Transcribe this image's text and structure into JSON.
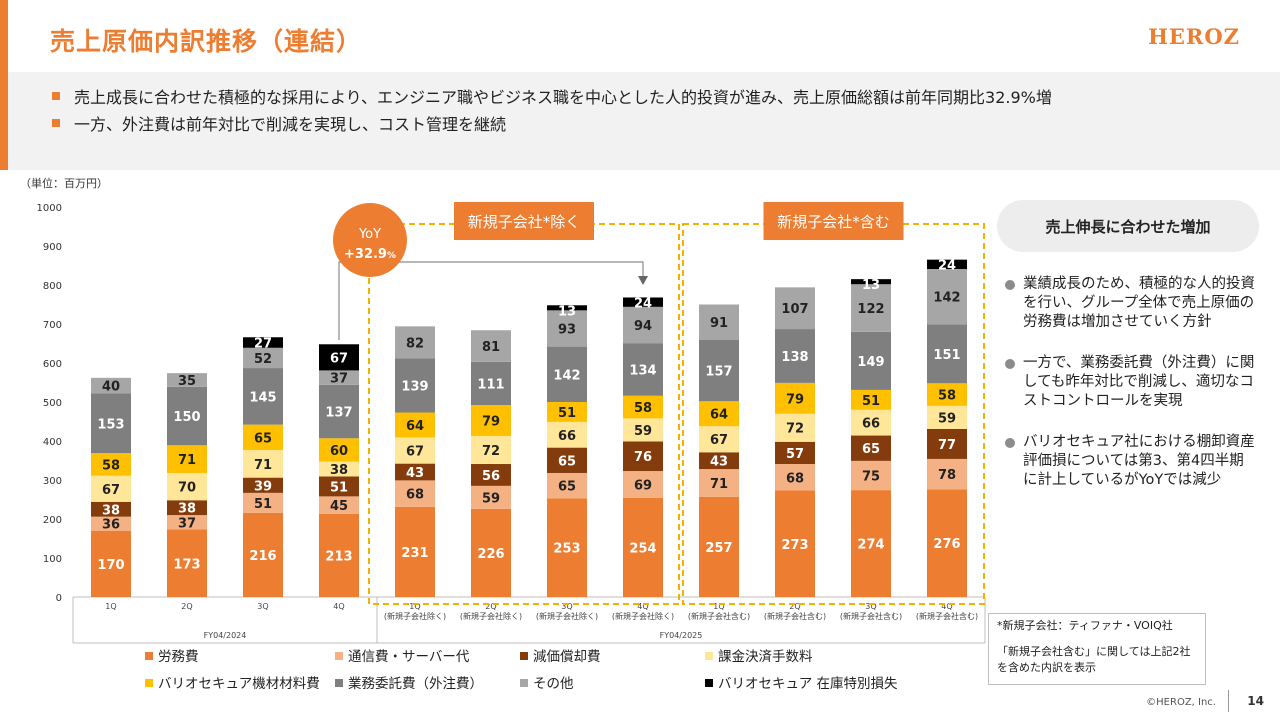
{
  "header": {
    "title": "売上原価内訳推移（連結）",
    "logo": "HEROZ"
  },
  "summary": {
    "bullets": [
      "売上成長に合わせた積極的な採用により、エンジニア職やビジネス職を中心とした人的投資が進み、売上原価総額は前年同期比32.9%増",
      "一方、外注費は前年対比で削減を実現し、コスト管理を継続"
    ]
  },
  "sidebar": {
    "callout": "売上伸長に合わせた増加",
    "points": [
      "業績成長のため、積極的な人的投資を行い、グループ全体で売上原価の労務費は増加させていく方針",
      "一方で、業務委託費（外注費）に関しても昨年対比で削減し、適切なコストコントロールを実現",
      "バリオセキュア社における棚卸資産評価損については第3、第4四半期に計上しているがYoYでは減少"
    ],
    "note_line1": "*新規子会社：ティファナ・VOIQ社",
    "note_line2": "「新規子会社含む」に関しては上記2社を含めた内訳を表示"
  },
  "footer": {
    "copyright": "©HEROZ, Inc.",
    "page": "14"
  },
  "chart_data": {
    "type": "bar",
    "stacked": true,
    "unit_label": "（単位：百万円）",
    "ylim": [
      0,
      1000
    ],
    "yticks": [
      0,
      100,
      200,
      300,
      400,
      500,
      600,
      700,
      800,
      900,
      1000
    ],
    "categories": [
      [
        "1Q"
      ],
      [
        "2Q"
      ],
      [
        "3Q"
      ],
      [
        "4Q"
      ],
      [
        "1Q",
        "(新規子会社除く)"
      ],
      [
        "2Q",
        "(新規子会社除く)"
      ],
      [
        "3Q",
        "(新規子会社除く)"
      ],
      [
        "4Q",
        "(新規子会社除く)"
      ],
      [
        "1Q",
        "(新規子会社含む)"
      ],
      [
        "2Q",
        "(新規子会社含む)"
      ],
      [
        "3Q",
        "(新規子会社含む)"
      ],
      [
        "4Q",
        "(新規子会社含む)"
      ]
    ],
    "groups": [
      {
        "label": "FY04/2024",
        "start": 0,
        "end": 3
      },
      {
        "label": "FY04/2025",
        "start": 4,
        "end": 11
      }
    ],
    "series": [
      {
        "name": "労務費",
        "color": "#ed7d31",
        "values": [
          170,
          173,
          216,
          213,
          231,
          226,
          253,
          254,
          257,
          273,
          274,
          276
        ]
      },
      {
        "name": "通信費・サーバー代",
        "color": "#f4b183",
        "values": [
          36,
          37,
          51,
          45,
          68,
          59,
          65,
          69,
          71,
          68,
          75,
          78
        ]
      },
      {
        "name": "減価償却費",
        "color": "#843c0c",
        "values": [
          38,
          38,
          39,
          51,
          43,
          56,
          65,
          76,
          43,
          57,
          65,
          77
        ]
      },
      {
        "name": "課金決済手数料",
        "color": "#ffe699",
        "values": [
          67,
          70,
          71,
          38,
          67,
          72,
          66,
          59,
          67,
          72,
          66,
          59
        ]
      },
      {
        "name": "バリオセキュア機材材料費",
        "color": "#ffc000",
        "values": [
          58,
          71,
          65,
          60,
          64,
          79,
          51,
          58,
          64,
          79,
          51,
          58
        ]
      },
      {
        "name": "業務委託費（外注費）",
        "color": "#7f7f7f",
        "values": [
          153,
          150,
          145,
          137,
          139,
          111,
          142,
          134,
          157,
          138,
          149,
          151
        ]
      },
      {
        "name": "その他",
        "color": "#a6a6a6",
        "values": [
          40,
          35,
          52,
          37,
          82,
          81,
          93,
          94,
          91,
          107,
          122,
          142
        ]
      },
      {
        "name": "バリオセキュア 在庫特別損失",
        "color": "#000000",
        "values": [
          0,
          0,
          27,
          67,
          0,
          0,
          13,
          24,
          0,
          0,
          13,
          24
        ]
      }
    ],
    "annotations": {
      "yoy_line1": "YoY",
      "yoy_line2": "+32.9",
      "yoy_unit": "%",
      "box_excl": "新規子会社*除く",
      "box_incl": "新規子会社*含む"
    },
    "legend": "bottom"
  }
}
